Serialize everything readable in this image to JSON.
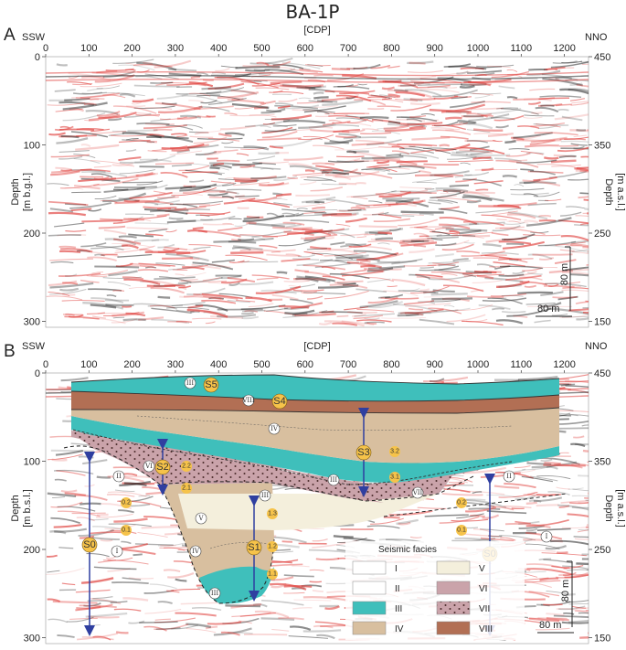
{
  "title": "BA-1P",
  "panels": [
    {
      "id": "A",
      "label": "A",
      "left_direction": "SSW",
      "right_direction": "NNO",
      "x_axis_label": "[CDP]",
      "x_ticks": [
        "0",
        "100",
        "200",
        "300",
        "400",
        "500",
        "600",
        "700",
        "800",
        "900",
        "1000",
        "1100",
        "1200"
      ],
      "left_axis_label_line1": "Depth",
      "left_axis_label_line2": "[m b.g.l.]",
      "left_ticks": [
        "0",
        "100",
        "200",
        "300"
      ],
      "right_axis_label_line1": "Depth",
      "right_axis_label_line2": "[m a.s.l.]",
      "right_ticks": [
        "450",
        "350",
        "250",
        "150"
      ],
      "scale_vertical": "80 m",
      "scale_horizontal": "80 m"
    },
    {
      "id": "B",
      "label": "B",
      "left_direction": "SSW",
      "right_direction": "NNO",
      "x_axis_label": "[CDP]",
      "x_ticks": [
        "0",
        "100",
        "200",
        "300",
        "400",
        "500",
        "600",
        "700",
        "800",
        "900",
        "1000",
        "1100",
        "1200"
      ],
      "left_axis_label_line1": "Depth",
      "left_axis_label_line2": "[m b.s.l.]",
      "left_ticks": [
        "0",
        "100",
        "200",
        "300"
      ],
      "right_axis_label_line1": "Depth",
      "right_axis_label_line2": "[m a.s.l.]",
      "right_ticks": [
        "450",
        "350",
        "250",
        "150"
      ],
      "scale_vertical": "80 m",
      "scale_horizontal": "80 m"
    }
  ],
  "sequences": [
    "S5",
    "S4",
    "S3",
    "S2",
    "S1",
    "S0"
  ],
  "subunits": [
    "3.2",
    "3.1",
    "2.2",
    "2.1",
    "1.3",
    "1.2",
    "1.1",
    "0.2",
    "0.1"
  ],
  "facies_markers": [
    "I",
    "II",
    "III",
    "IV",
    "V",
    "VI",
    "VII",
    "VIII"
  ],
  "legend": {
    "title": "Seismic facies",
    "items": [
      {
        "label": "I",
        "color": "#ffffff",
        "pattern": "none"
      },
      {
        "label": "V",
        "color": "#f4efdc",
        "pattern": "none"
      },
      {
        "label": "II",
        "color": "#ffffff",
        "pattern": "none"
      },
      {
        "label": "VI",
        "color": "#caa3aa",
        "pattern": "none"
      },
      {
        "label": "III",
        "color": "#3fbfbb",
        "pattern": "none"
      },
      {
        "label": "VII",
        "color": "#caa3aa",
        "pattern": "dots"
      },
      {
        "label": "IV",
        "color": "#d8bf9f",
        "pattern": "none"
      },
      {
        "label": "VIII",
        "color": "#b26f54",
        "pattern": "none"
      }
    ]
  },
  "colors": {
    "teal": "#3fbfbb",
    "brown": "#b26f54",
    "tan": "#d8bf9f",
    "mauve": "#caa3aa",
    "cream": "#f4efdc",
    "badge": "#f6c34a",
    "arrow": "#2f3fa0",
    "seismic_red": "#e0433f",
    "seismic_dark": "#222222"
  }
}
